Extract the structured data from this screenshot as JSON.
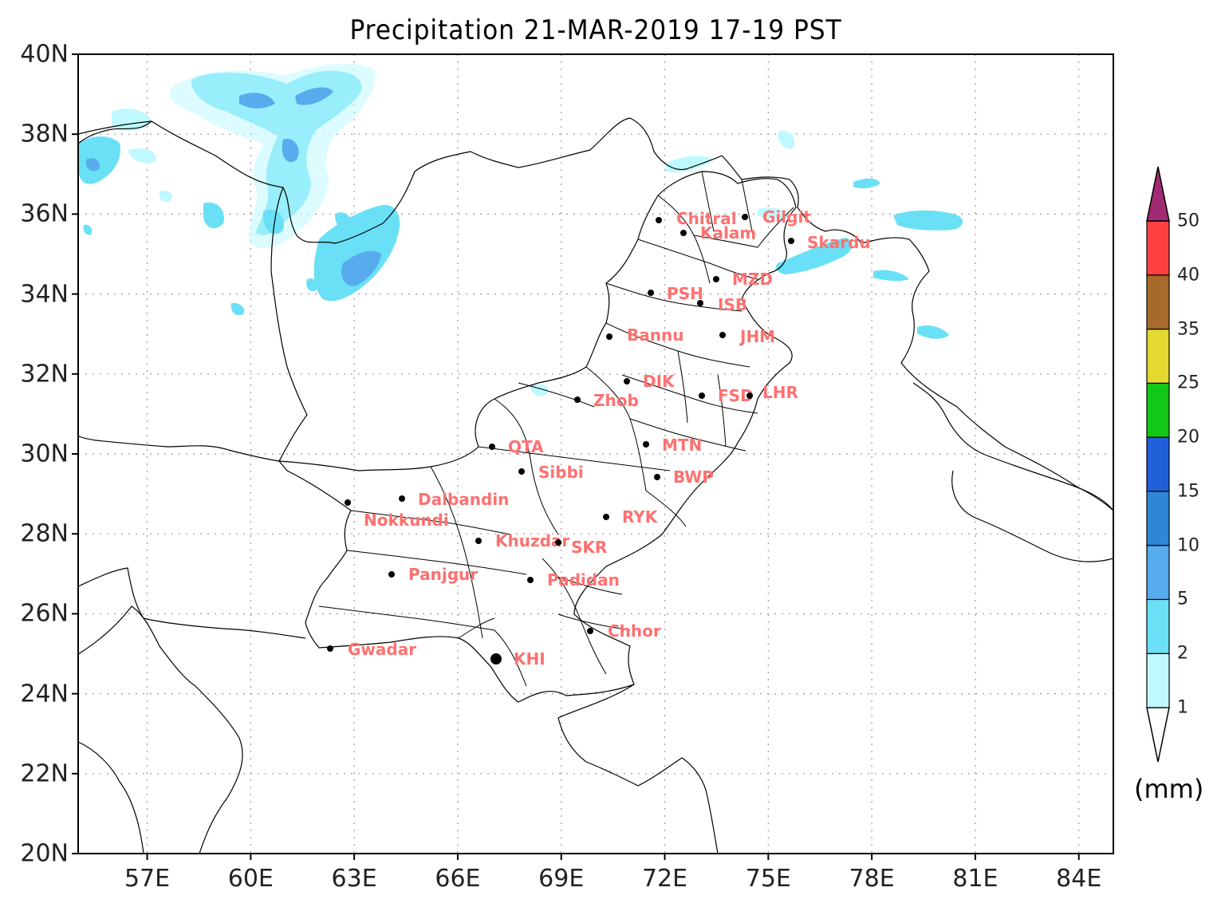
{
  "title": "Precipitation 21-MAR-2019 17-19 PST",
  "y_ticks": [
    "40N",
    "38N",
    "36N",
    "34N",
    "32N",
    "30N",
    "28N",
    "26N",
    "24N",
    "22N",
    "20N"
  ],
  "x_ticks": [
    "57E",
    "60E",
    "63E",
    "66E",
    "69E",
    "72E",
    "75E",
    "78E",
    "81E",
    "84E"
  ],
  "colorbar": {
    "unit": "(mm)",
    "levels": [
      "1",
      "2",
      "5",
      "10",
      "15",
      "20",
      "25",
      "35",
      "40",
      "50"
    ],
    "colors": [
      "#bff9ff",
      "#69e0f5",
      "#57acee",
      "#2f86d6",
      "#2060d8",
      "#12c816",
      "#e3d930",
      "#a86a2b",
      "#ff4040",
      "#a02b73"
    ]
  },
  "cities": [
    {
      "name": "Chitral"
    },
    {
      "name": "Gilgit"
    },
    {
      "name": "Kalam"
    },
    {
      "name": "Skardu"
    },
    {
      "name": "MZD"
    },
    {
      "name": "PSH"
    },
    {
      "name": "ISB"
    },
    {
      "name": "Bannu"
    },
    {
      "name": "JHM"
    },
    {
      "name": "DIK"
    },
    {
      "name": "Zhob"
    },
    {
      "name": "FSD"
    },
    {
      "name": "LHR"
    },
    {
      "name": "QTA"
    },
    {
      "name": "MTN"
    },
    {
      "name": "Sibbi"
    },
    {
      "name": "BWP"
    },
    {
      "name": "Dalbandin"
    },
    {
      "name": "Nokkundi"
    },
    {
      "name": "RYK"
    },
    {
      "name": "Khuzdar"
    },
    {
      "name": "SKR"
    },
    {
      "name": "Panjgur"
    },
    {
      "name": "Padidan"
    },
    {
      "name": "Chhor"
    },
    {
      "name": "Gwadar"
    },
    {
      "name": "KHI"
    }
  ]
}
